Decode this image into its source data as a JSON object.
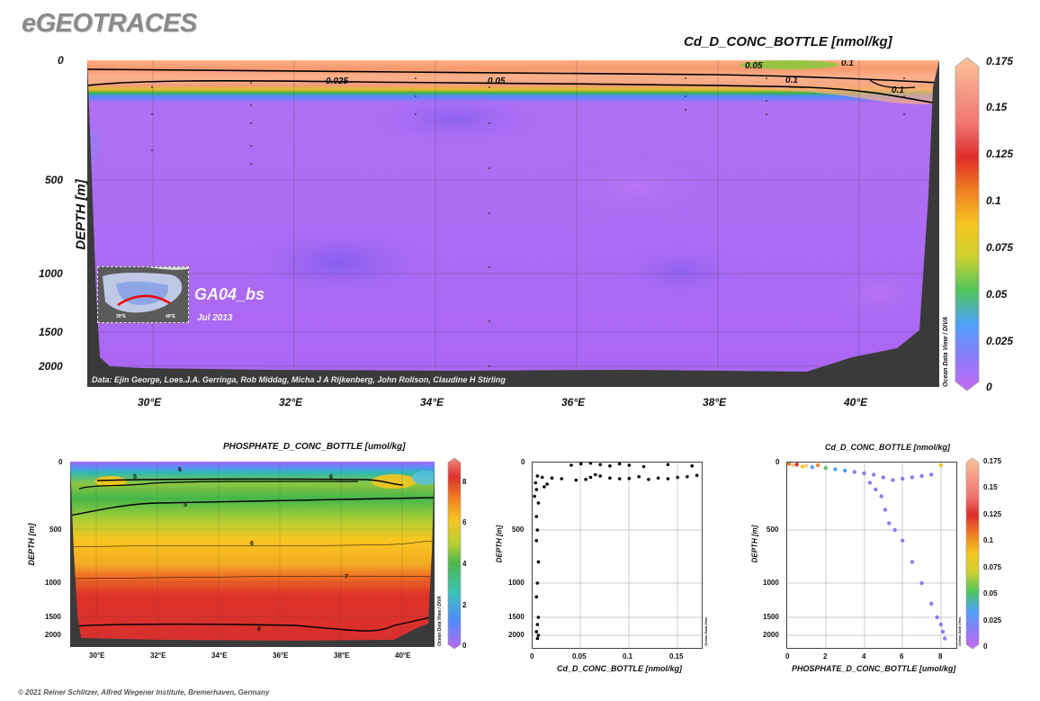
{
  "brand": "eGEOTRACES",
  "copyright": "© 2021 Reiner Schlitzer, Alfred Wegener Institute, Bremerhaven, Germany",
  "main_section": {
    "title": "Cd_D_CONC_BOTTLE [nmol/kg]",
    "ylabel": "DEPTH [m]",
    "y_ticks": [
      "0",
      "500",
      "1000",
      "1500",
      "2000"
    ],
    "x_ticks": [
      "30°E",
      "32°E",
      "34°E",
      "36°E",
      "38°E",
      "40°E"
    ],
    "cruise": "GA04_bs",
    "date": "Jul 2013",
    "inset_lon_left": "30°E",
    "inset_lon_right": "40°E",
    "credit": "Data: Ejin George, Loes.J.A. Gerringa, Rob Middag, Micha J A Rijkenberg, John Rolison, Claudine H Stirling",
    "watermark": "Ocean Data View / DIVA",
    "contour_labels": [
      "0.05",
      "0.1",
      "0.025",
      "0.05",
      "0.1",
      "0.1"
    ],
    "colorbar_ticks": [
      "0.175",
      "0.15",
      "0.125",
      "0.1",
      "0.075",
      "0.05",
      "0.025",
      "0"
    ]
  },
  "phosphate_section": {
    "title": "PHOSPHATE_D_CONC_BOTTLE [umol/kg]",
    "ylabel": "DEPTH [m]",
    "y_ticks": [
      "0",
      "500",
      "1000",
      "1500",
      "2000"
    ],
    "x_ticks": [
      "30°E",
      "32°E",
      "34°E",
      "36°E",
      "38°E",
      "40°E"
    ],
    "watermark": "Ocean Data View / DIVA",
    "contour_labels": [
      "6",
      "5",
      "6",
      "5",
      "6",
      "7",
      "8"
    ],
    "colorbar_ticks": [
      "8",
      "6",
      "4",
      "2",
      "0"
    ]
  },
  "scatter_cd": {
    "xlabel": "Cd_D_CONC_BOTTLE [nmol/kg]",
    "ylabel": "DEPTH [m]",
    "y_ticks": [
      "0",
      "500",
      "1000",
      "1500",
      "2000"
    ],
    "x_ticks": [
      "0",
      "0.05",
      "0.1",
      "0.15"
    ],
    "watermark": "Ocean Data View"
  },
  "scatter_phos": {
    "title": "Cd_D_CONC_BOTTLE [nmol/kg]",
    "xlabel": "PHOSPHATE_D_CONC_BOTTLE [umol/kg]",
    "ylabel": "DEPTH [m]",
    "y_ticks": [
      "0",
      "500",
      "1000",
      "1500",
      "2000"
    ],
    "x_ticks": [
      "0",
      "2",
      "4",
      "6",
      "8"
    ],
    "watermark": "Ocean Data View",
    "colorbar_ticks": [
      "0.175",
      "0.15",
      "0.125",
      "0.1",
      "0.075",
      "0.05",
      "0.025",
      "0"
    ]
  },
  "chart_data": [
    {
      "type": "heatmap",
      "title": "Cd_D_CONC_BOTTLE [nmol/kg]",
      "xlabel": "",
      "ylabel": "DEPTH [m]",
      "xlim": [
        29.0,
        41.2
      ],
      "ylim": [
        0,
        2200
      ],
      "y_scale": "ODV stretched (upper water column expanded)",
      "colorbar_range": [
        0,
        0.175
      ],
      "description_values": {
        "surface_layer_0_80m": 0.16,
        "interface_100m": 0.05,
        "interior_200_2000m": 0.005,
        "coast_anomaly_west_300m": 0.03
      }
    },
    {
      "type": "heatmap",
      "title": "PHOSPHATE_D_CONC_BOTTLE [umol/kg]",
      "ylabel": "DEPTH [m]",
      "xlim": [
        29.0,
        41.2
      ],
      "ylim": [
        0,
        2200
      ],
      "colorbar_range": [
        0,
        8.5
      ],
      "description_values": {
        "surface_0_50m": 0.3,
        "depth_150m": 5,
        "depth_500m": 6,
        "depth_1000m": 7.2,
        "depth_1800m": 8
      }
    },
    {
      "type": "scatter",
      "title": "",
      "xlabel": "Cd_D_CONC_BOTTLE [nmol/kg]",
      "ylabel": "DEPTH [m]",
      "xlim": [
        0,
        0.175
      ],
      "ylim": [
        2200,
        0
      ],
      "points": [
        [
          0.005,
          100
        ],
        [
          0.01,
          110
        ],
        [
          0.02,
          115
        ],
        [
          0.03,
          120
        ],
        [
          0.045,
          130
        ],
        [
          0.055,
          125
        ],
        [
          0.06,
          110
        ],
        [
          0.065,
          90
        ],
        [
          0.07,
          100
        ],
        [
          0.08,
          115
        ],
        [
          0.09,
          120
        ],
        [
          0.1,
          118
        ],
        [
          0.11,
          105
        ],
        [
          0.12,
          125
        ],
        [
          0.13,
          115
        ],
        [
          0.14,
          120
        ],
        [
          0.15,
          110
        ],
        [
          0.16,
          105
        ],
        [
          0.17,
          95
        ],
        [
          0.04,
          20
        ],
        [
          0.05,
          10
        ],
        [
          0.06,
          5
        ],
        [
          0.07,
          15
        ],
        [
          0.08,
          25
        ],
        [
          0.09,
          10
        ],
        [
          0.1,
          20
        ],
        [
          0.115,
          30
        ],
        [
          0.14,
          15
        ],
        [
          0.165,
          25
        ],
        [
          0.003,
          150
        ],
        [
          0.004,
          200
        ],
        [
          0.002,
          250
        ],
        [
          0.006,
          300
        ],
        [
          0.004,
          400
        ],
        [
          0.005,
          500
        ],
        [
          0.004,
          600
        ],
        [
          0.006,
          800
        ],
        [
          0.005,
          1000
        ],
        [
          0.004,
          1200
        ],
        [
          0.006,
          1500
        ],
        [
          0.005,
          1700
        ],
        [
          0.004,
          1900
        ],
        [
          0.006,
          2000
        ],
        [
          0.005,
          2050
        ],
        [
          0.012,
          180
        ],
        [
          0.015,
          160
        ]
      ]
    },
    {
      "type": "scatter",
      "title": "Cd_D_CONC_BOTTLE [nmol/kg]",
      "xlabel": "PHOSPHATE_D_CONC_BOTTLE [umol/kg]",
      "ylabel": "DEPTH [m]",
      "xlim": [
        0,
        8.8
      ],
      "ylim": [
        2200,
        0
      ],
      "color_by": "Cd_D_CONC_BOTTLE [nmol/kg]",
      "points": [
        [
          0.1,
          10,
          0.1
        ],
        [
          0.3,
          20,
          0.15
        ],
        [
          0.5,
          15,
          0.12
        ],
        [
          0.8,
          30,
          0.06
        ],
        [
          1.0,
          25,
          0.14
        ],
        [
          1.3,
          35,
          0.02
        ],
        [
          1.6,
          20,
          0.1
        ],
        [
          2.0,
          40,
          0.04
        ],
        [
          2.5,
          50,
          0.03
        ],
        [
          3.0,
          60,
          0.02
        ],
        [
          3.5,
          70,
          0.01
        ],
        [
          4.0,
          80,
          0.01
        ],
        [
          4.5,
          90,
          0.005
        ],
        [
          5.0,
          110,
          0.005
        ],
        [
          5.5,
          130,
          0.005
        ],
        [
          6.0,
          120,
          0.005
        ],
        [
          6.5,
          110,
          0.005
        ],
        [
          7.0,
          100,
          0.005
        ],
        [
          7.5,
          90,
          0.005
        ],
        [
          8.0,
          20,
          0.06
        ],
        [
          4.3,
          150,
          0.005
        ],
        [
          4.6,
          200,
          0.005
        ],
        [
          4.9,
          250,
          0.005
        ],
        [
          5.1,
          350,
          0.005
        ],
        [
          5.3,
          450,
          0.005
        ],
        [
          5.6,
          500,
          0.005
        ],
        [
          6.0,
          600,
          0.005
        ],
        [
          6.5,
          800,
          0.005
        ],
        [
          7.0,
          1000,
          0.005
        ],
        [
          7.5,
          1300,
          0.005
        ],
        [
          7.8,
          1500,
          0.005
        ],
        [
          8.0,
          1700,
          0.005
        ],
        [
          8.1,
          1900,
          0.005
        ],
        [
          8.2,
          2050,
          0.005
        ]
      ]
    }
  ]
}
